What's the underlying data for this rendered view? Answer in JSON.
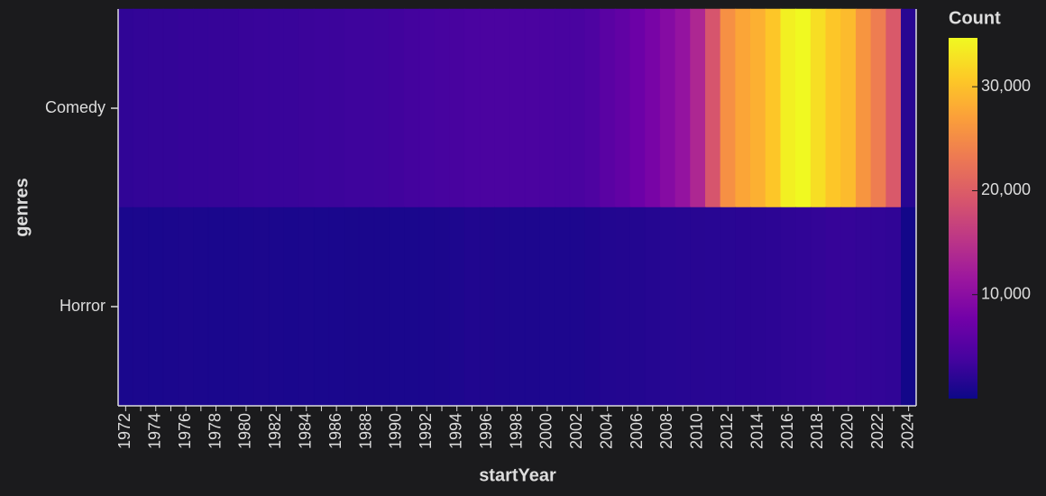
{
  "chart_data": {
    "type": "heatmap",
    "x_label": "startYear",
    "y_label": "genres",
    "legend_title": "Count",
    "categories": [
      "1972",
      null,
      "1974",
      null,
      "1976",
      null,
      "1978",
      null,
      "1980",
      null,
      "1982",
      null,
      "1984",
      null,
      "1986",
      null,
      "1988",
      null,
      "1990",
      null,
      "1992",
      null,
      "1994",
      null,
      "1996",
      null,
      "1998",
      null,
      "2000",
      null,
      "2002",
      null,
      "2004",
      null,
      "2006",
      null,
      "2008",
      null,
      "2010",
      null,
      "2012",
      null,
      "2014",
      null,
      "2016",
      null,
      "2018",
      null,
      "2020",
      null,
      "2022",
      null,
      "2024"
    ],
    "rows": [
      "Comedy",
      "Horror"
    ],
    "values": [
      [
        2400,
        2500,
        2600,
        2600,
        2700,
        2700,
        2800,
        2800,
        2900,
        3000,
        3000,
        3000,
        3100,
        3200,
        3200,
        3300,
        3300,
        3400,
        3500,
        3700,
        3800,
        3900,
        4000,
        4200,
        4300,
        4300,
        4300,
        4300,
        4200,
        4100,
        4200,
        4600,
        5600,
        6200,
        7200,
        8300,
        9500,
        10800,
        13500,
        19000,
        25500,
        27500,
        28500,
        30500,
        34000,
        34700,
        32500,
        30500,
        29500,
        26000,
        23500,
        19500,
        1800
      ],
      [
        900,
        950,
        900,
        950,
        1000,
        950,
        900,
        900,
        950,
        1000,
        950,
        900,
        950,
        900,
        900,
        850,
        850,
        850,
        900,
        900,
        950,
        1000,
        1100,
        1300,
        1200,
        1150,
        1100,
        1100,
        1050,
        1050,
        1100,
        1200,
        1400,
        1500,
        1500,
        1600,
        1700,
        1750,
        1800,
        1850,
        1900,
        1950,
        2000,
        2100,
        2300,
        2400,
        2600,
        2800,
        2700,
        2600,
        2500,
        2400,
        400
      ]
    ],
    "clim": [
      0,
      34700
    ],
    "cticks": [
      {
        "value": 10000,
        "label": "10,000"
      },
      {
        "value": 20000,
        "label": "20,000"
      },
      {
        "value": 30000,
        "label": "30,000"
      }
    ],
    "colorscale": [
      "#0d0887",
      "#46039f",
      "#7201a8",
      "#9c179e",
      "#bd3786",
      "#d8576b",
      "#ed7953",
      "#fb9f3a",
      "#fdca26",
      "#f0f921"
    ]
  }
}
